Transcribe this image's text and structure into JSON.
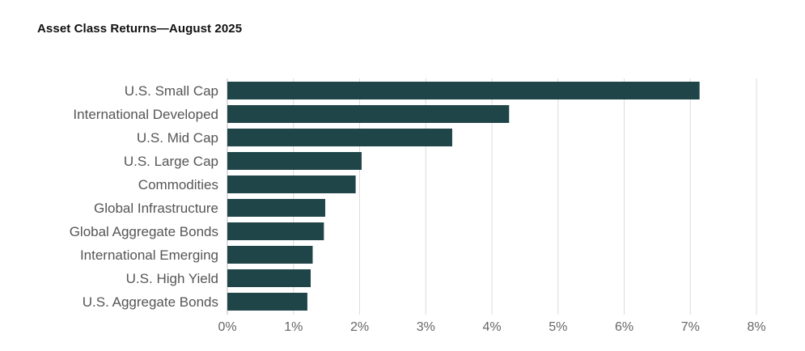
{
  "title": "Asset Class Returns—August 2025",
  "colors": {
    "bar": "#1f4549",
    "grid": "#dcdcdc",
    "axis": "#bcbcbc"
  },
  "chart_data": {
    "type": "bar",
    "orientation": "horizontal",
    "title": "Asset Class Returns—August 2025",
    "xlabel": "",
    "ylabel": "",
    "categories": [
      "U.S. Small Cap",
      "International Developed",
      "U.S. Mid Cap",
      "U.S. Large Cap",
      "Commodities",
      "Global Infrastructure",
      "Global Aggregate Bonds",
      "International Emerging",
      "U.S. High Yield",
      "U.S. Aggregate Bonds"
    ],
    "values": [
      7.14,
      4.26,
      3.4,
      2.03,
      1.94,
      1.48,
      1.46,
      1.29,
      1.26,
      1.21
    ],
    "unit": "%",
    "xlim": [
      0,
      8
    ],
    "xticks": [
      "0%",
      "1%",
      "2%",
      "3%",
      "4%",
      "5%",
      "6%",
      "7%",
      "8%"
    ],
    "grid": true
  }
}
